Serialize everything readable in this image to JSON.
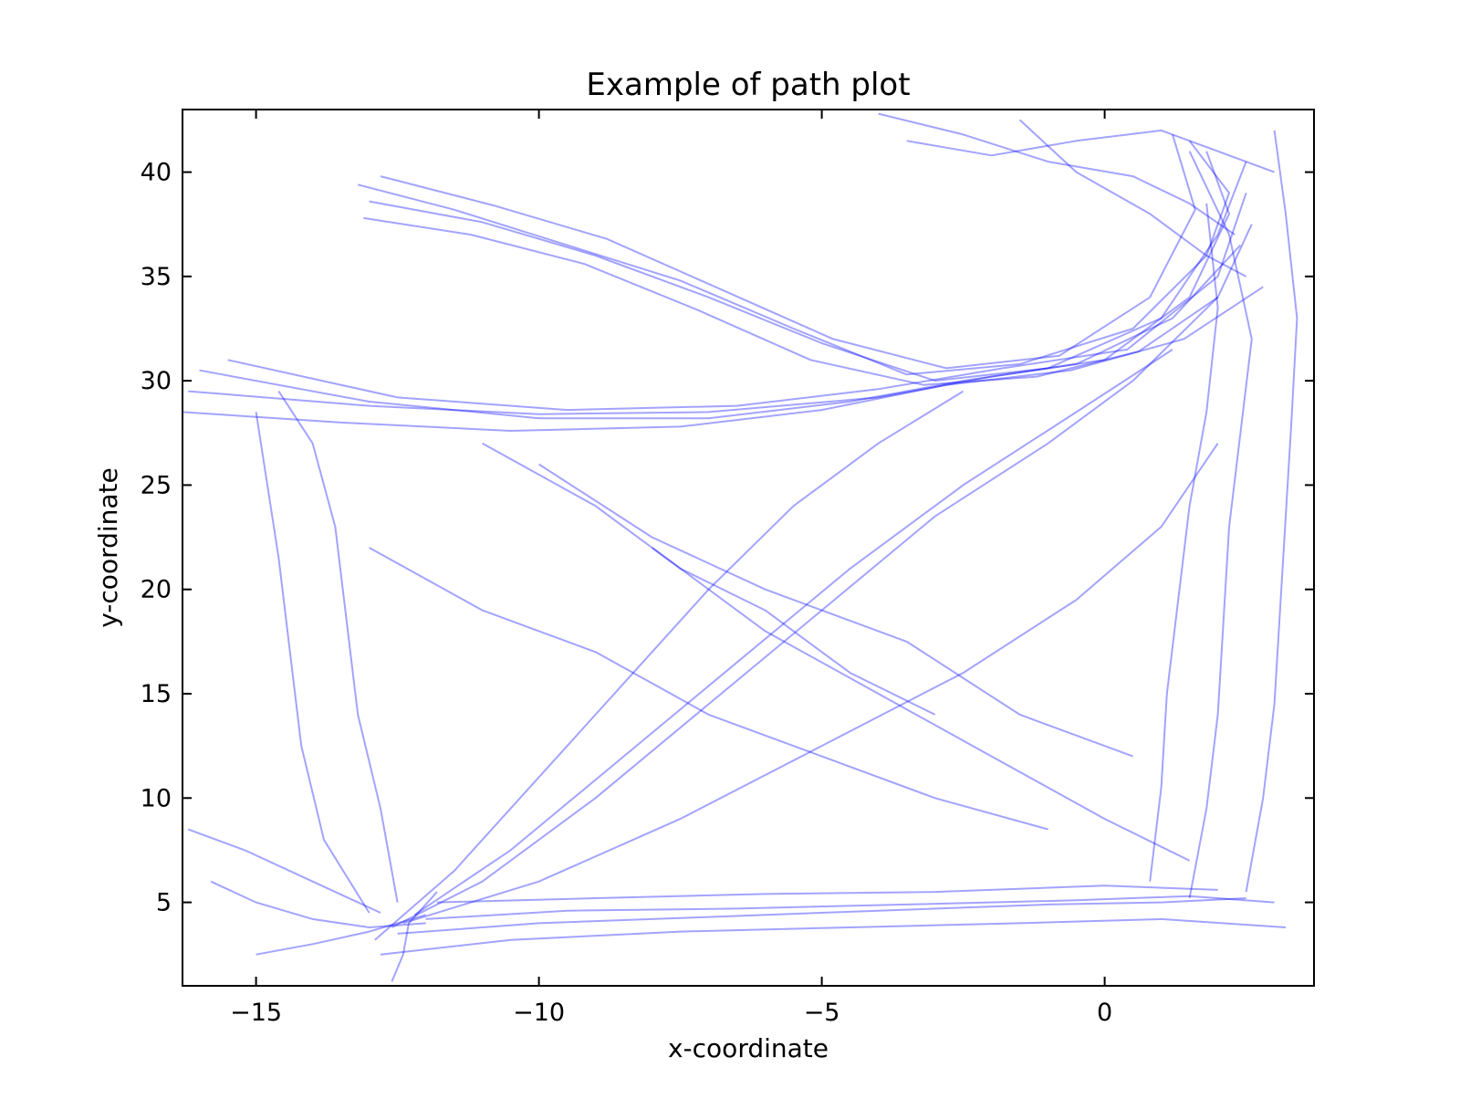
{
  "chart_data": {
    "type": "line",
    "title": "Example of path plot",
    "xlabel": "x-coordinate",
    "ylabel": "y-coordinate",
    "xlim": [
      -16.3,
      3.7
    ],
    "ylim": [
      1.0,
      43.0
    ],
    "xticks": [
      -15,
      -10,
      -5,
      0
    ],
    "xtick_labels": [
      "−15",
      "−10",
      "−5",
      "0"
    ],
    "yticks": [
      5,
      10,
      15,
      20,
      25,
      30,
      35,
      40
    ],
    "ytick_labels": [
      "5",
      "10",
      "15",
      "20",
      "25",
      "30",
      "35",
      "40"
    ],
    "grid": false,
    "legend": "none",
    "line_color": "#0000ff",
    "line_alpha": 0.12,
    "series": [
      {
        "values": [
          [
            -13.2,
            39.4
          ],
          [
            -11.5,
            38.2
          ],
          [
            -9.5,
            36.5
          ],
          [
            -7.5,
            34.8
          ],
          [
            -5.5,
            32.5
          ],
          [
            -3.5,
            30.3
          ],
          [
            -1.5,
            30.8
          ],
          [
            0.5,
            32.5
          ],
          [
            1.8,
            36.0
          ],
          [
            2.2,
            39.0
          ],
          [
            1.5,
            41.5
          ]
        ]
      },
      {
        "values": [
          [
            -13.0,
            38.6
          ],
          [
            -11.0,
            37.6
          ],
          [
            -9.0,
            36.0
          ],
          [
            -7.0,
            34.0
          ],
          [
            -5.0,
            31.8
          ],
          [
            -3.0,
            30.0
          ],
          [
            -1.0,
            30.6
          ],
          [
            1.0,
            33.0
          ],
          [
            2.0,
            37.0
          ],
          [
            2.5,
            40.5
          ]
        ]
      },
      {
        "values": [
          [
            -12.8,
            39.8
          ],
          [
            -10.8,
            38.4
          ],
          [
            -8.8,
            36.8
          ],
          [
            -6.8,
            34.4
          ],
          [
            -4.8,
            32.0
          ],
          [
            -2.8,
            30.6
          ],
          [
            -0.8,
            31.2
          ],
          [
            0.8,
            34.0
          ],
          [
            1.6,
            38.2
          ],
          [
            1.2,
            41.8
          ]
        ]
      },
      {
        "values": [
          [
            -13.1,
            37.8
          ],
          [
            -11.2,
            37.0
          ],
          [
            -9.2,
            35.6
          ],
          [
            -7.2,
            33.4
          ],
          [
            -5.2,
            31.0
          ],
          [
            -3.2,
            29.8
          ],
          [
            -1.2,
            30.2
          ],
          [
            0.6,
            31.4
          ],
          [
            2.0,
            34.0
          ],
          [
            2.6,
            37.5
          ]
        ]
      },
      {
        "values": [
          [
            -16.2,
            29.5
          ],
          [
            -13.0,
            28.8
          ],
          [
            -10.0,
            28.4
          ],
          [
            -7.0,
            28.5
          ],
          [
            -4.0,
            29.2
          ],
          [
            -2.0,
            30.2
          ],
          [
            0.0,
            31.0
          ],
          [
            1.5,
            34.0
          ],
          [
            2.2,
            38.0
          ],
          [
            1.8,
            41.0
          ]
        ]
      },
      {
        "values": [
          [
            -16.0,
            30.5
          ],
          [
            -13.0,
            29.0
          ],
          [
            -10.0,
            28.2
          ],
          [
            -7.0,
            28.2
          ],
          [
            -4.5,
            29.0
          ],
          [
            -2.5,
            30.0
          ],
          [
            -0.5,
            30.8
          ],
          [
            1.2,
            33.0
          ],
          [
            2.4,
            36.5
          ]
        ]
      },
      {
        "values": [
          [
            -15.5,
            31.0
          ],
          [
            -12.5,
            29.2
          ],
          [
            -9.5,
            28.6
          ],
          [
            -6.5,
            28.8
          ],
          [
            -4.0,
            29.6
          ],
          [
            -1.8,
            30.6
          ],
          [
            0.4,
            31.5
          ],
          [
            2.0,
            35.0
          ],
          [
            2.5,
            39.0
          ]
        ]
      },
      {
        "values": [
          [
            -16.3,
            28.5
          ],
          [
            -13.5,
            28.0
          ],
          [
            -10.5,
            27.6
          ],
          [
            -7.5,
            27.8
          ],
          [
            -5.0,
            28.6
          ],
          [
            -2.8,
            29.8
          ],
          [
            -0.6,
            30.5
          ],
          [
            1.4,
            32.0
          ],
          [
            2.8,
            34.5
          ]
        ]
      },
      {
        "values": [
          [
            -12.5,
            3.5
          ],
          [
            -10.0,
            4.0
          ],
          [
            -7.0,
            4.3
          ],
          [
            -4.0,
            4.6
          ],
          [
            -1.0,
            4.9
          ],
          [
            1.0,
            5.0
          ],
          [
            2.5,
            5.2
          ]
        ]
      },
      {
        "values": [
          [
            -12.0,
            4.2
          ],
          [
            -9.5,
            4.6
          ],
          [
            -6.5,
            4.7
          ],
          [
            -3.5,
            4.9
          ],
          [
            -0.5,
            5.1
          ],
          [
            1.5,
            5.3
          ],
          [
            3.0,
            5.0
          ]
        ]
      },
      {
        "values": [
          [
            -12.8,
            2.5
          ],
          [
            -10.5,
            3.2
          ],
          [
            -7.5,
            3.6
          ],
          [
            -4.5,
            3.8
          ],
          [
            -1.5,
            4.0
          ],
          [
            1.0,
            4.2
          ],
          [
            3.2,
            3.8
          ]
        ]
      },
      {
        "values": [
          [
            -11.8,
            5.0
          ],
          [
            -9.0,
            5.2
          ],
          [
            -6.0,
            5.4
          ],
          [
            -3.0,
            5.5
          ],
          [
            0.0,
            5.8
          ],
          [
            2.0,
            5.6
          ]
        ]
      },
      {
        "values": [
          [
            -12.6,
            3.8
          ],
          [
            -11.0,
            6.0
          ],
          [
            -9.0,
            10.0
          ],
          [
            -7.0,
            14.5
          ],
          [
            -5.0,
            19.0
          ],
          [
            -3.0,
            23.5
          ],
          [
            -1.0,
            27.0
          ],
          [
            0.5,
            30.0
          ],
          [
            2.0,
            34.0
          ]
        ]
      },
      {
        "values": [
          [
            -12.2,
            4.4
          ],
          [
            -10.5,
            7.5
          ],
          [
            -8.5,
            12.0
          ],
          [
            -6.5,
            16.5
          ],
          [
            -4.5,
            21.0
          ],
          [
            -2.5,
            25.0
          ],
          [
            -0.5,
            28.5
          ],
          [
            1.2,
            31.5
          ]
        ]
      },
      {
        "values": [
          [
            -12.9,
            3.2
          ],
          [
            -11.5,
            6.5
          ],
          [
            -10.0,
            11.0
          ],
          [
            -8.5,
            15.5
          ],
          [
            -7.0,
            20.0
          ],
          [
            -5.5,
            24.0
          ],
          [
            -4.0,
            27.0
          ],
          [
            -2.5,
            29.5
          ]
        ]
      },
      {
        "values": [
          [
            -12.4,
            4.0
          ],
          [
            -10.0,
            6.0
          ],
          [
            -7.5,
            9.0
          ],
          [
            -5.0,
            12.5
          ],
          [
            -2.5,
            16.0
          ],
          [
            -0.5,
            19.5
          ],
          [
            1.0,
            23.0
          ],
          [
            2.0,
            27.0
          ]
        ]
      },
      {
        "values": [
          [
            -13.0,
            4.5
          ],
          [
            -13.8,
            8.0
          ],
          [
            -14.2,
            12.5
          ],
          [
            -14.4,
            17.0
          ],
          [
            -14.6,
            21.5
          ],
          [
            -14.8,
            25.0
          ],
          [
            -15.0,
            28.5
          ]
        ]
      },
      {
        "values": [
          [
            -12.5,
            5.0
          ],
          [
            -12.8,
            9.5
          ],
          [
            -13.2,
            14.0
          ],
          [
            -13.4,
            18.5
          ],
          [
            -13.6,
            23.0
          ],
          [
            -14.0,
            27.0
          ],
          [
            -14.6,
            29.5
          ]
        ]
      },
      {
        "values": [
          [
            1.5,
            5.2
          ],
          [
            1.8,
            9.5
          ],
          [
            2.0,
            14.0
          ],
          [
            2.1,
            18.5
          ],
          [
            2.2,
            23.0
          ],
          [
            2.4,
            27.5
          ],
          [
            2.6,
            32.0
          ],
          [
            2.2,
            37.0
          ],
          [
            1.5,
            41.0
          ]
        ]
      },
      {
        "values": [
          [
            0.8,
            6.0
          ],
          [
            1.0,
            10.5
          ],
          [
            1.1,
            15.0
          ],
          [
            1.3,
            19.5
          ],
          [
            1.5,
            24.0
          ],
          [
            1.8,
            28.5
          ],
          [
            2.0,
            33.5
          ],
          [
            1.8,
            38.5
          ]
        ]
      },
      {
        "values": [
          [
            2.5,
            5.5
          ],
          [
            2.8,
            10.0
          ],
          [
            3.0,
            14.5
          ],
          [
            3.1,
            19.0
          ],
          [
            3.2,
            23.5
          ],
          [
            3.3,
            28.0
          ],
          [
            3.4,
            33.0
          ],
          [
            3.2,
            38.0
          ],
          [
            3.0,
            42.0
          ]
        ]
      },
      {
        "values": [
          [
            -4.0,
            42.8
          ],
          [
            -2.5,
            41.8
          ],
          [
            -1.0,
            40.5
          ],
          [
            0.5,
            39.8
          ],
          [
            1.5,
            38.5
          ],
          [
            2.3,
            37.0
          ]
        ]
      },
      {
        "values": [
          [
            -3.5,
            41.5
          ],
          [
            -2.0,
            40.8
          ],
          [
            -0.5,
            41.5
          ],
          [
            1.0,
            42.0
          ],
          [
            2.0,
            41.0
          ],
          [
            3.0,
            40.0
          ]
        ]
      },
      {
        "values": [
          [
            -1.5,
            42.5
          ],
          [
            -0.5,
            40.0
          ],
          [
            0.8,
            38.0
          ],
          [
            1.8,
            36.0
          ],
          [
            2.5,
            35.0
          ]
        ]
      },
      {
        "values": [
          [
            -15.8,
            6.0
          ],
          [
            -15.0,
            5.0
          ],
          [
            -14.0,
            4.2
          ],
          [
            -13.0,
            3.8
          ],
          [
            -12.0,
            4.0
          ]
        ]
      },
      {
        "values": [
          [
            -16.2,
            8.5
          ],
          [
            -15.2,
            7.5
          ],
          [
            -14.0,
            6.0
          ],
          [
            -12.8,
            4.5
          ]
        ]
      },
      {
        "values": [
          [
            -15.0,
            2.5
          ],
          [
            -14.0,
            3.0
          ],
          [
            -13.0,
            3.6
          ],
          [
            -12.0,
            4.4
          ]
        ]
      },
      {
        "values": [
          [
            -12.6,
            1.2
          ],
          [
            -12.4,
            2.5
          ],
          [
            -12.3,
            4.0
          ],
          [
            -11.8,
            5.5
          ]
        ]
      },
      {
        "values": [
          [
            -8.0,
            22.0
          ],
          [
            -6.0,
            18.0
          ],
          [
            -4.0,
            15.0
          ],
          [
            -2.0,
            12.0
          ],
          [
            0.0,
            9.0
          ],
          [
            1.5,
            7.0
          ]
        ]
      },
      {
        "values": [
          [
            -10.0,
            26.0
          ],
          [
            -8.0,
            22.5
          ],
          [
            -6.0,
            20.0
          ],
          [
            -3.5,
            17.5
          ],
          [
            -1.5,
            14.0
          ],
          [
            0.5,
            12.0
          ]
        ]
      },
      {
        "values": [
          [
            -13.0,
            22.0
          ],
          [
            -11.0,
            19.0
          ],
          [
            -9.0,
            17.0
          ],
          [
            -7.0,
            14.0
          ],
          [
            -5.0,
            12.0
          ],
          [
            -3.0,
            10.0
          ],
          [
            -1.0,
            8.5
          ]
        ]
      },
      {
        "values": [
          [
            -11.0,
            27.0
          ],
          [
            -9.0,
            24.0
          ],
          [
            -7.5,
            21.0
          ],
          [
            -6.0,
            19.0
          ],
          [
            -4.5,
            16.0
          ],
          [
            -3.0,
            14.0
          ]
        ]
      }
    ]
  }
}
